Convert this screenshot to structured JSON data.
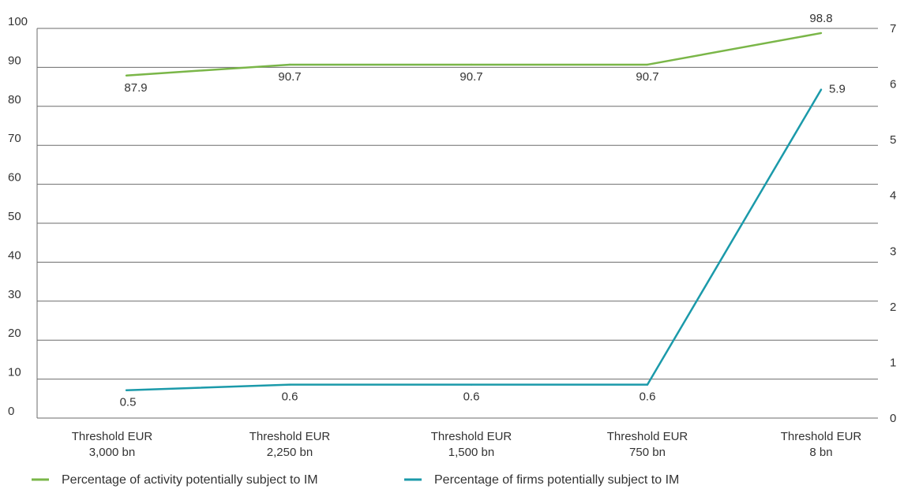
{
  "chart_data": {
    "type": "line",
    "categories": [
      [
        "Threshold EUR",
        "3,000 bn"
      ],
      [
        "Threshold EUR",
        "2,250 bn"
      ],
      [
        "Threshold EUR",
        "1,500 bn"
      ],
      [
        "Threshold EUR",
        "750 bn"
      ],
      [
        "Threshold EUR",
        "8 bn"
      ]
    ],
    "left_axis": {
      "ylim": [
        0,
        100
      ],
      "ticks": [
        "0",
        "10",
        "20",
        "30",
        "40",
        "50",
        "60",
        "70",
        "80",
        "90",
        "100"
      ]
    },
    "right_axis": {
      "ylim": [
        0,
        7
      ],
      "ticks": [
        "0",
        "1",
        "2",
        "3",
        "4",
        "5",
        "6",
        "7"
      ]
    },
    "grid": true,
    "legend_position": "bottom",
    "series": [
      {
        "name": "Percentage of activity potentially subject to IM",
        "axis": "left",
        "color": "#7ab648",
        "values": [
          87.9,
          90.7,
          90.7,
          90.7,
          98.8
        ],
        "labels": [
          "87.9",
          "90.7",
          "90.7",
          "90.7",
          "98.8"
        ]
      },
      {
        "name": "Percentage of firms potentially subject to IM",
        "axis": "right",
        "color": "#1b9aaa",
        "values": [
          0.5,
          0.6,
          0.6,
          0.6,
          5.9
        ],
        "labels": [
          "0.5",
          "0.6",
          "0.6",
          "0.6",
          "5.9"
        ]
      }
    ]
  }
}
